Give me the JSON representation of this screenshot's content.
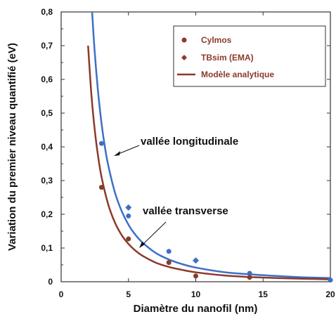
{
  "chart_data": {
    "type": "scatter",
    "title": "",
    "xlabel": "Diamètre du nanofil  (nm)",
    "ylabel": "Variation du premier niveau quantifié  (eV)",
    "xlim": [
      0,
      20
    ],
    "ylim": [
      0,
      0.8
    ],
    "x_ticks": [
      "0",
      "5",
      "10",
      "15",
      "20"
    ],
    "y_ticks": [
      "0",
      "0,1",
      "0,2",
      "0,3",
      "0,4",
      "0,5",
      "0,6",
      "0,7",
      "0,8"
    ],
    "grid": false,
    "legend_position": "top-right",
    "legend": [
      {
        "label": "Cylmos",
        "marker": "circle",
        "color": "#8B3A2A"
      },
      {
        "label": "TBsim (EMA)",
        "marker": "diamond",
        "color": "#8B3A2A"
      },
      {
        "label": "Modèle analytique",
        "marker": "line",
        "color": "#8B3A2A"
      }
    ],
    "series": [
      {
        "name": "",
        "kind": "points",
        "marker": "circle",
        "color": "#3E6FC6",
        "x": [
          3,
          5,
          8,
          14,
          20
        ],
        "y": [
          0.41,
          0.195,
          0.09,
          0.025,
          0.005
        ]
      },
      {
        "name": "",
        "kind": "points",
        "marker": "diamond",
        "color": "#3E6FC6",
        "x": [
          5,
          10
        ],
        "y": [
          0.22,
          0.063
        ]
      },
      {
        "name": "",
        "kind": "points",
        "marker": "circle",
        "color": "#8B3A2A",
        "x": [
          3,
          5,
          8,
          10,
          14
        ],
        "y": [
          0.28,
          0.127,
          0.057,
          0.017,
          0.013
        ]
      },
      {
        "name": "",
        "kind": "curve",
        "color": "#3E6FC6",
        "x": [
          2.3,
          2.5,
          2.75,
          3,
          3.25,
          3.5,
          4,
          4.5,
          5,
          5.5,
          6,
          7,
          8,
          9,
          10,
          12,
          14,
          16,
          18,
          20
        ],
        "y": [
          0.8,
          0.677,
          0.559,
          0.47,
          0.4,
          0.345,
          0.264,
          0.209,
          0.169,
          0.14,
          0.118,
          0.086,
          0.066,
          0.052,
          0.042,
          0.029,
          0.022,
          0.017,
          0.013,
          0.011
        ]
      },
      {
        "name": "",
        "kind": "curve",
        "color": "#8B3A2A",
        "x": [
          2,
          2.25,
          2.5,
          2.75,
          3,
          3.5,
          4,
          4.5,
          5,
          5.5,
          6,
          7,
          8,
          9,
          10,
          12,
          14,
          16,
          18,
          20
        ],
        "y": [
          0.7,
          0.553,
          0.448,
          0.37,
          0.311,
          0.229,
          0.175,
          0.138,
          0.112,
          0.093,
          0.078,
          0.057,
          0.044,
          0.035,
          0.028,
          0.019,
          0.014,
          0.011,
          0.009,
          0.007
        ]
      }
    ],
    "annotations": [
      {
        "text": "vallée longitudinale",
        "points_to": [
          3.9,
          0.33
        ]
      },
      {
        "text": "vallée transverse",
        "points_to": [
          5.8,
          0.07
        ]
      }
    ]
  }
}
